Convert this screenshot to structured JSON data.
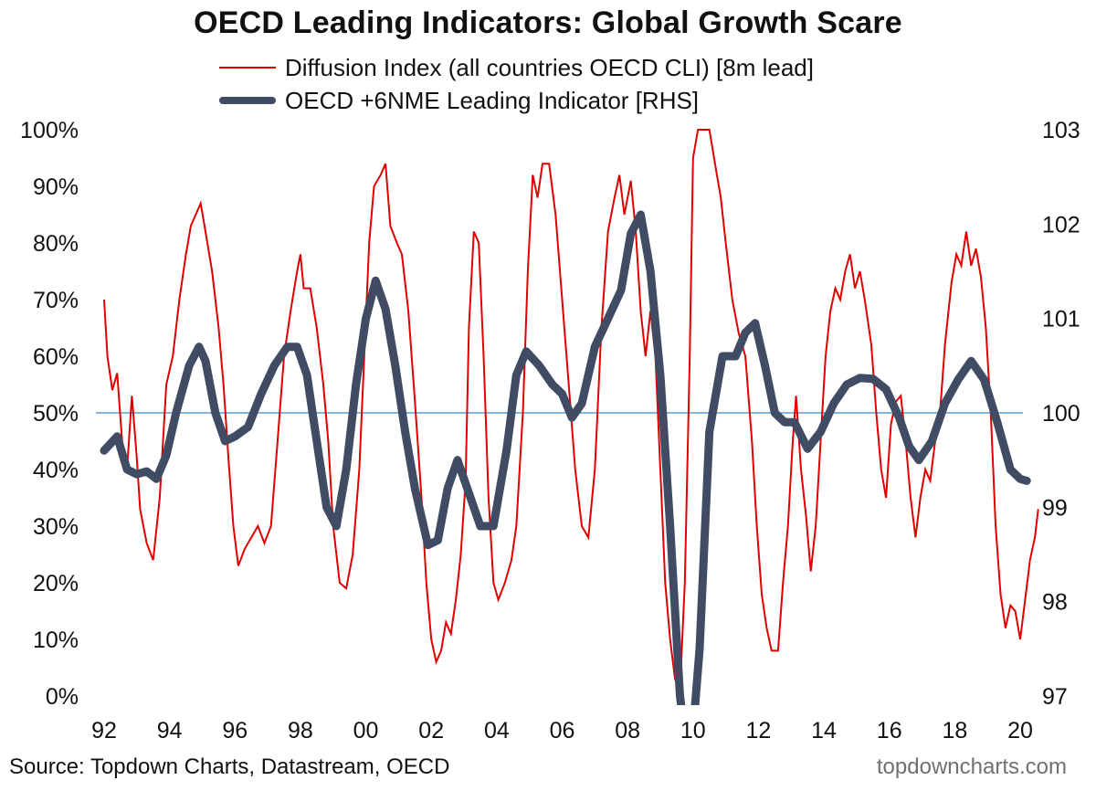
{
  "title": "OECD Leading Indicators: Global Growth Scare",
  "legend": {
    "diffusion": "Diffusion Index (all countries OECD CLI) [8m lead]",
    "cli": "OECD +6NME Leading Indicator [RHS]"
  },
  "footer": {
    "source": "Source: Topdown Charts, Datastream, OECD",
    "brand": "topdowncharts.com"
  },
  "colors": {
    "diffusion": "#e00000",
    "cli": "#3f4c63",
    "reference_line": "#5b9bd5"
  },
  "chart_data": {
    "type": "line",
    "title": "OECD Leading Indicators: Global Growth Scare",
    "x_ticks": [
      "92",
      "94",
      "96",
      "98",
      "00",
      "02",
      "04",
      "06",
      "08",
      "10",
      "12",
      "14",
      "16",
      "18",
      "20"
    ],
    "x_range": [
      1992,
      2020
    ],
    "y_left": {
      "range": [
        0,
        100
      ],
      "ticks": [
        "0%",
        "10%",
        "20%",
        "30%",
        "40%",
        "50%",
        "60%",
        "70%",
        "80%",
        "90%",
        "100%"
      ]
    },
    "y_right": {
      "range": [
        97,
        103
      ],
      "ticks": [
        "97",
        "98",
        "99",
        "100",
        "101",
        "102",
        "103"
      ]
    },
    "reference_line": {
      "axis": "left",
      "value": 50
    },
    "grid": false,
    "legend_position": "top",
    "series": [
      {
        "name": "Diffusion Index (all countries OECD CLI) [8m lead]",
        "axis": "left",
        "points": [
          [
            1992.0,
            70
          ],
          [
            1992.1,
            60
          ],
          [
            1992.25,
            54
          ],
          [
            1992.4,
            57
          ],
          [
            1992.55,
            45
          ],
          [
            1992.7,
            40
          ],
          [
            1992.85,
            53
          ],
          [
            1993.0,
            42
          ],
          [
            1993.1,
            33
          ],
          [
            1993.3,
            27
          ],
          [
            1993.5,
            24
          ],
          [
            1993.7,
            35
          ],
          [
            1993.9,
            55
          ],
          [
            1994.1,
            60
          ],
          [
            1994.3,
            70
          ],
          [
            1994.5,
            78
          ],
          [
            1994.65,
            83
          ],
          [
            1994.8,
            85
          ],
          [
            1994.95,
            87
          ],
          [
            1995.1,
            82
          ],
          [
            1995.3,
            75
          ],
          [
            1995.5,
            65
          ],
          [
            1995.65,
            55
          ],
          [
            1995.8,
            42
          ],
          [
            1995.95,
            30
          ],
          [
            1996.1,
            23
          ],
          [
            1996.3,
            26
          ],
          [
            1996.5,
            28
          ],
          [
            1996.7,
            30
          ],
          [
            1996.9,
            27
          ],
          [
            1997.1,
            30
          ],
          [
            1997.3,
            45
          ],
          [
            1997.5,
            60
          ],
          [
            1997.7,
            68
          ],
          [
            1997.9,
            75
          ],
          [
            1998.0,
            78
          ],
          [
            1998.1,
            72
          ],
          [
            1998.3,
            72
          ],
          [
            1998.5,
            65
          ],
          [
            1998.7,
            55
          ],
          [
            1998.85,
            45
          ],
          [
            1999.0,
            30
          ],
          [
            1999.2,
            20
          ],
          [
            1999.4,
            19
          ],
          [
            1999.6,
            25
          ],
          [
            1999.8,
            40
          ],
          [
            1999.95,
            60
          ],
          [
            2000.1,
            80
          ],
          [
            2000.25,
            90
          ],
          [
            2000.45,
            92
          ],
          [
            2000.6,
            94
          ],
          [
            2000.75,
            83
          ],
          [
            2000.95,
            80
          ],
          [
            2001.1,
            78
          ],
          [
            2001.3,
            68
          ],
          [
            2001.5,
            52
          ],
          [
            2001.7,
            35
          ],
          [
            2001.85,
            20
          ],
          [
            2002.0,
            10
          ],
          [
            2002.15,
            6
          ],
          [
            2002.3,
            8
          ],
          [
            2002.45,
            13
          ],
          [
            2002.6,
            11
          ],
          [
            2002.75,
            17
          ],
          [
            2002.9,
            25
          ],
          [
            2003.05,
            38
          ],
          [
            2003.15,
            65
          ],
          [
            2003.3,
            82
          ],
          [
            2003.45,
            80
          ],
          [
            2003.6,
            60
          ],
          [
            2003.75,
            35
          ],
          [
            2003.9,
            20
          ],
          [
            2004.05,
            17
          ],
          [
            2004.25,
            20
          ],
          [
            2004.45,
            24
          ],
          [
            2004.6,
            30
          ],
          [
            2004.8,
            50
          ],
          [
            2004.95,
            75
          ],
          [
            2005.1,
            92
          ],
          [
            2005.25,
            88
          ],
          [
            2005.4,
            94
          ],
          [
            2005.6,
            94
          ],
          [
            2005.8,
            85
          ],
          [
            2006.0,
            70
          ],
          [
            2006.2,
            55
          ],
          [
            2006.4,
            40
          ],
          [
            2006.6,
            30
          ],
          [
            2006.8,
            28
          ],
          [
            2007.0,
            40
          ],
          [
            2007.2,
            65
          ],
          [
            2007.4,
            82
          ],
          [
            2007.6,
            88
          ],
          [
            2007.75,
            92
          ],
          [
            2007.9,
            85
          ],
          [
            2008.1,
            91
          ],
          [
            2008.25,
            82
          ],
          [
            2008.4,
            68
          ],
          [
            2008.55,
            60
          ],
          [
            2008.7,
            68
          ],
          [
            2008.85,
            60
          ],
          [
            2009.0,
            40
          ],
          [
            2009.15,
            20
          ],
          [
            2009.3,
            10
          ],
          [
            2009.45,
            3
          ],
          [
            2009.6,
            1
          ],
          [
            2009.75,
            20
          ],
          [
            2009.9,
            60
          ],
          [
            2010.0,
            95
          ],
          [
            2010.15,
            100
          ],
          [
            2010.35,
            100
          ],
          [
            2010.5,
            100
          ],
          [
            2010.7,
            93
          ],
          [
            2010.85,
            88
          ],
          [
            2011.0,
            80
          ],
          [
            2011.2,
            70
          ],
          [
            2011.4,
            64
          ],
          [
            2011.6,
            60
          ],
          [
            2011.8,
            45
          ],
          [
            2011.95,
            30
          ],
          [
            2012.1,
            18
          ],
          [
            2012.25,
            12
          ],
          [
            2012.4,
            8
          ],
          [
            2012.6,
            8
          ],
          [
            2012.75,
            20
          ],
          [
            2012.9,
            30
          ],
          [
            2013.05,
            45
          ],
          [
            2013.15,
            53
          ],
          [
            2013.3,
            40
          ],
          [
            2013.45,
            32
          ],
          [
            2013.6,
            22
          ],
          [
            2013.75,
            30
          ],
          [
            2013.9,
            45
          ],
          [
            2014.05,
            60
          ],
          [
            2014.2,
            68
          ],
          [
            2014.35,
            72
          ],
          [
            2014.5,
            70
          ],
          [
            2014.65,
            75
          ],
          [
            2014.8,
            78
          ],
          [
            2014.95,
            72
          ],
          [
            2015.1,
            75
          ],
          [
            2015.25,
            70
          ],
          [
            2015.45,
            62
          ],
          [
            2015.6,
            50
          ],
          [
            2015.75,
            40
          ],
          [
            2015.9,
            35
          ],
          [
            2016.05,
            48
          ],
          [
            2016.2,
            52
          ],
          [
            2016.35,
            53
          ],
          [
            2016.5,
            45
          ],
          [
            2016.65,
            35
          ],
          [
            2016.8,
            28
          ],
          [
            2016.95,
            35
          ],
          [
            2017.1,
            40
          ],
          [
            2017.25,
            38
          ],
          [
            2017.4,
            45
          ],
          [
            2017.55,
            50
          ],
          [
            2017.7,
            62
          ],
          [
            2017.9,
            73
          ],
          [
            2018.05,
            78
          ],
          [
            2018.2,
            76
          ],
          [
            2018.35,
            82
          ],
          [
            2018.5,
            76
          ],
          [
            2018.65,
            79
          ],
          [
            2018.8,
            74
          ],
          [
            2018.95,
            65
          ],
          [
            2019.1,
            50
          ],
          [
            2019.25,
            30
          ],
          [
            2019.4,
            18
          ],
          [
            2019.55,
            12
          ],
          [
            2019.7,
            16
          ],
          [
            2019.85,
            15
          ],
          [
            2020.0,
            10
          ],
          [
            2020.15,
            17
          ],
          [
            2020.3,
            24
          ],
          [
            2020.45,
            28
          ],
          [
            2020.55,
            33
          ]
        ]
      },
      {
        "name": "OECD +6NME Leading Indicator [RHS]",
        "axis": "right",
        "points": [
          [
            1992.0,
            99.6
          ],
          [
            1992.4,
            99.75
          ],
          [
            1992.7,
            99.4
          ],
          [
            1993.0,
            99.35
          ],
          [
            1993.3,
            99.38
          ],
          [
            1993.6,
            99.3
          ],
          [
            1993.9,
            99.55
          ],
          [
            1994.2,
            100.0
          ],
          [
            1994.6,
            100.5
          ],
          [
            1994.9,
            100.7
          ],
          [
            1995.1,
            100.55
          ],
          [
            1995.4,
            100.0
          ],
          [
            1995.7,
            99.7
          ],
          [
            1996.0,
            99.75
          ],
          [
            1996.4,
            99.85
          ],
          [
            1996.8,
            100.2
          ],
          [
            1997.2,
            100.5
          ],
          [
            1997.6,
            100.7
          ],
          [
            1997.9,
            100.7
          ],
          [
            1998.2,
            100.4
          ],
          [
            1998.5,
            99.7
          ],
          [
            1998.8,
            99.0
          ],
          [
            1999.1,
            98.8
          ],
          [
            1999.4,
            99.4
          ],
          [
            1999.7,
            100.3
          ],
          [
            2000.0,
            101.0
          ],
          [
            2000.3,
            101.4
          ],
          [
            2000.6,
            101.1
          ],
          [
            2000.9,
            100.5
          ],
          [
            2001.2,
            99.8
          ],
          [
            2001.5,
            99.2
          ],
          [
            2001.9,
            98.6
          ],
          [
            2002.2,
            98.65
          ],
          [
            2002.5,
            99.2
          ],
          [
            2002.8,
            99.5
          ],
          [
            2003.1,
            99.2
          ],
          [
            2003.5,
            98.8
          ],
          [
            2003.9,
            98.8
          ],
          [
            2004.3,
            99.6
          ],
          [
            2004.6,
            100.4
          ],
          [
            2004.9,
            100.65
          ],
          [
            2005.3,
            100.5
          ],
          [
            2005.7,
            100.3
          ],
          [
            2006.0,
            100.2
          ],
          [
            2006.3,
            99.95
          ],
          [
            2006.6,
            100.1
          ],
          [
            2007.0,
            100.7
          ],
          [
            2007.4,
            101.0
          ],
          [
            2007.8,
            101.3
          ],
          [
            2008.1,
            101.9
          ],
          [
            2008.4,
            102.1
          ],
          [
            2008.7,
            101.5
          ],
          [
            2009.0,
            100.4
          ],
          [
            2009.3,
            98.8
          ],
          [
            2009.6,
            97.0
          ],
          [
            2009.9,
            96.2
          ],
          [
            2010.2,
            97.5
          ],
          [
            2010.5,
            99.8
          ],
          [
            2010.9,
            100.6
          ],
          [
            2011.3,
            100.6
          ],
          [
            2011.6,
            100.85
          ],
          [
            2011.9,
            100.95
          ],
          [
            2012.2,
            100.5
          ],
          [
            2012.5,
            100.0
          ],
          [
            2012.8,
            99.9
          ],
          [
            2013.1,
            99.9
          ],
          [
            2013.5,
            99.62
          ],
          [
            2013.9,
            99.8
          ],
          [
            2014.3,
            100.1
          ],
          [
            2014.7,
            100.3
          ],
          [
            2015.1,
            100.37
          ],
          [
            2015.5,
            100.36
          ],
          [
            2015.9,
            100.25
          ],
          [
            2016.3,
            99.95
          ],
          [
            2016.6,
            99.65
          ],
          [
            2016.9,
            99.5
          ],
          [
            2017.3,
            99.7
          ],
          [
            2017.7,
            100.1
          ],
          [
            2018.1,
            100.35
          ],
          [
            2018.5,
            100.55
          ],
          [
            2018.9,
            100.35
          ],
          [
            2019.3,
            99.9
          ],
          [
            2019.7,
            99.4
          ],
          [
            2020.0,
            99.3
          ],
          [
            2020.2,
            99.28
          ]
        ]
      }
    ]
  }
}
